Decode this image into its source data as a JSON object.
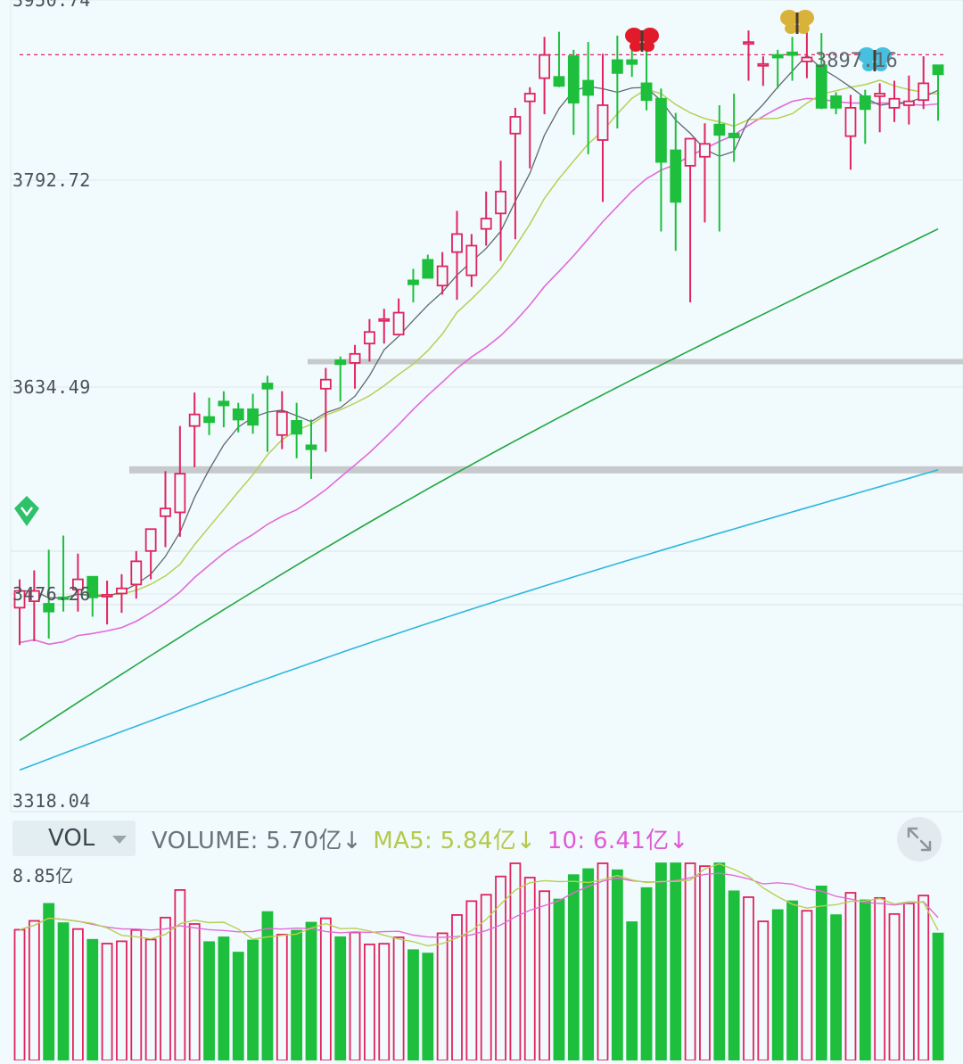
{
  "price_axis": {
    "labels": [
      "3950.74",
      "3792.72",
      "3634.49",
      "3476.26",
      "3318.04"
    ]
  },
  "last_price_label": "3897.16",
  "volume_panel": {
    "selector_label": "VOL",
    "legend": {
      "volume": "VOLUME: 5.70亿↓",
      "ma5": "MA5: 5.84亿↓",
      "ma10": "10: 6.41亿↓"
    },
    "max_label": "8.85亿"
  },
  "colors": {
    "up": "#e0245e",
    "down": "#1dbf3c",
    "ma5": "#5f676e",
    "ma10": "#b9cf55",
    "ma20": "#e46ad8",
    "ma60": "#22a63f",
    "ma120": "#2fb6dc",
    "vol_ma5": "#b9cf55",
    "vol_ma10": "#e46ad8",
    "support_band": "#c6cacc",
    "resistance_line": "#e0245e"
  },
  "icons": [
    "green-diamond-marker-icon",
    "red-butterfly-icon",
    "gold-butterfly-icon",
    "teal-butterfly-icon",
    "expand-icon",
    "dropdown-caret-icon"
  ],
  "chart_data": {
    "type": "candlestick",
    "y_range": [
      3318.04,
      3950.74
    ],
    "resistance_level": 3897.16,
    "support_bands": [
      3659,
      3575
    ],
    "candles": [
      [
        3468,
        3481,
        3467,
        3461,
        3488
      ],
      [
        3473,
        3481,
        3471,
        3490,
        3477
      ],
      [
        3471,
        3465,
        3452,
        3483,
        3473
      ],
      [
        3476,
        3475,
        3469,
        3510,
        3469
      ],
      [
        3482,
        3490,
        3479,
        3497,
        3472
      ],
      [
        3492,
        3476,
        3472,
        3501,
        3474
      ],
      [
        3477,
        3478,
        3478,
        3484,
        3465
      ],
      [
        3479,
        3483,
        3473,
        3486,
        3473
      ],
      [
        3486,
        3504,
        3481,
        3507,
        3481
      ],
      [
        3512,
        3529,
        3507,
        3530,
        3504
      ],
      [
        3539,
        3545,
        3528,
        3578,
        3522
      ],
      [
        3542,
        3572,
        3538,
        3576,
        3521
      ],
      [
        3609,
        3618,
        3602,
        3629,
        3588
      ],
      [
        3616,
        3612,
        3605,
        3618,
        3590
      ],
      [
        3628,
        3625,
        3625,
        3630,
        3617
      ],
      [
        3622,
        3614,
        3613,
        3613,
        3606
      ],
      [
        3622,
        3610,
        3620,
        3617,
        3609
      ],
      [
        3642,
        3638,
        3633,
        3630,
        3624
      ],
      [
        3602,
        3620,
        3604,
        3615,
        3584
      ],
      [
        3613,
        3603,
        3609,
        3598,
        3582
      ],
      [
        3594,
        3591,
        3585,
        3580,
        3581
      ],
      [
        3638,
        3645,
        3622,
        3642,
        3618
      ],
      [
        3660,
        3657,
        3654,
        3648,
        3641
      ],
      [
        3658,
        3665,
        3656,
        3648,
        3651
      ],
      [
        3673,
        3682,
        3667,
        3675,
        3663
      ],
      [
        3691,
        3692,
        3683,
        3678,
        3675
      ],
      [
        3680,
        3697,
        3692,
        3688,
        3684
      ],
      [
        3722,
        3719,
        3710,
        3718,
        3707
      ],
      [
        3738,
        3724,
        3735,
        3746,
        3711
      ],
      [
        3718,
        3733,
        3727,
        3723,
        3702
      ],
      [
        3744,
        3758,
        3748,
        3728,
        3727
      ],
      [
        3726,
        3749,
        3733,
        3743,
        3713
      ],
      [
        3762,
        3770,
        3761,
        3781,
        3760
      ],
      [
        3774,
        3791,
        3772,
        3804,
        3770
      ],
      [
        3836,
        3849,
        3841,
        3856,
        3849
      ],
      [
        3861,
        3867,
        3859,
        3884,
        3854
      ],
      [
        3879,
        3897,
        3878,
        3894,
        3874
      ],
      [
        3880,
        3873,
        3881,
        3900,
        3893
      ],
      [
        3896,
        3860,
        3877,
        3853,
        3844
      ],
      [
        3877,
        3866,
        3856,
        3866,
        3820
      ],
      [
        3831,
        3858,
        3847,
        3883,
        3829
      ],
      [
        3893,
        3883,
        3860,
        3901,
        3880
      ],
      [
        3893,
        3890,
        3896,
        3875,
        3881
      ],
      [
        3875,
        3862,
        3866,
        3876,
        3853
      ],
      [
        3863,
        3814,
        3836,
        3839,
        3816
      ],
      [
        3823,
        3783,
        3838,
        3800,
        3815
      ],
      [
        3811,
        3832,
        3820,
        3839,
        3819
      ],
      [
        3818,
        3828,
        3821,
        3828,
        3831
      ],
      [
        3843,
        3835,
        3833,
        3842,
        3821
      ],
      [
        3836,
        3833,
        3838,
        3842,
        3828
      ],
      [
        3906,
        3907,
        3893,
        3890,
        3876
      ],
      [
        3889,
        3890,
        3890,
        3898,
        3886
      ],
      [
        3897,
        3895,
        3884,
        3883,
        3885
      ],
      [
        3899,
        3897,
        3881,
        3889,
        3898
      ],
      [
        3892,
        3895,
        3891,
        3895,
        3879
      ],
      [
        3889,
        3856,
        3866,
        3884,
        3871
      ],
      [
        3865,
        3856,
        3842,
        3857,
        3864
      ],
      [
        3834,
        3856,
        3843,
        3866,
        3861
      ],
      [
        3865,
        3855,
        3852,
        3853,
        3828
      ],
      [
        3865,
        3867,
        3856,
        3874,
        3857
      ],
      [
        3856,
        3863,
        3868,
        3878,
        3857
      ],
      [
        3858,
        3861,
        3856,
        3867,
        3863
      ],
      [
        3862,
        3875,
        3867,
        3865,
        3868
      ],
      [
        3889,
        3882,
        3884,
        3885,
        3868
      ]
    ],
    "candle_hl": [
      [
        3439,
        3490
      ],
      [
        3442,
        3497
      ],
      [
        3444,
        3513
      ],
      [
        3465,
        3524
      ],
      [
        3465,
        3510
      ],
      [
        3461,
        3486
      ],
      [
        3455,
        3489
      ],
      [
        3464,
        3494
      ],
      [
        3475,
        3512
      ],
      [
        3490,
        3529
      ],
      [
        3515,
        3574
      ],
      [
        3523,
        3609
      ],
      [
        3577,
        3635
      ],
      [
        3602,
        3631
      ],
      [
        3608,
        3636
      ],
      [
        3604,
        3627
      ],
      [
        3603,
        3634
      ],
      [
        3589,
        3648
      ],
      [
        3591,
        3636
      ],
      [
        3584,
        3627
      ],
      [
        3568,
        3614
      ],
      [
        3589,
        3654
      ],
      [
        3628,
        3663
      ],
      [
        3638,
        3672
      ],
      [
        3659,
        3692
      ],
      [
        3673,
        3700
      ],
      [
        3680,
        3708
      ],
      [
        3705,
        3731
      ],
      [
        3727,
        3742
      ],
      [
        3711,
        3744
      ],
      [
        3707,
        3776
      ],
      [
        3717,
        3758
      ],
      [
        3749,
        3791
      ],
      [
        3737,
        3815
      ],
      [
        3754,
        3856
      ],
      [
        3809,
        3872
      ],
      [
        3851,
        3911
      ],
      [
        3872,
        3915
      ],
      [
        3835,
        3901
      ],
      [
        3820,
        3907
      ],
      [
        3783,
        3898
      ],
      [
        3840,
        3912
      ],
      [
        3880,
        3902
      ],
      [
        3854,
        3911
      ],
      [
        3760,
        3871
      ],
      [
        3745,
        3852
      ],
      [
        3705,
        3827
      ],
      [
        3767,
        3844
      ],
      [
        3760,
        3858
      ],
      [
        3814,
        3867
      ],
      [
        3877,
        3916
      ],
      [
        3873,
        3896
      ],
      [
        3871,
        3901
      ],
      [
        3877,
        3911
      ],
      [
        3879,
        3915
      ],
      [
        3855,
        3914
      ],
      [
        3851,
        3868
      ],
      [
        3808,
        3866
      ],
      [
        3828,
        3870
      ],
      [
        3837,
        3875
      ],
      [
        3845,
        3877
      ],
      [
        3843,
        3881
      ],
      [
        3855,
        3896
      ],
      [
        3846,
        3889
      ]
    ],
    "ma60_start": 3365,
    "ma60_end": 3762,
    "ma120_start": 3342,
    "ma120_end": 3575,
    "volume": {
      "max": 8.85,
      "unit": "亿",
      "latest": 5.7,
      "ma5": 5.84,
      "ma10": 6.41
    }
  }
}
